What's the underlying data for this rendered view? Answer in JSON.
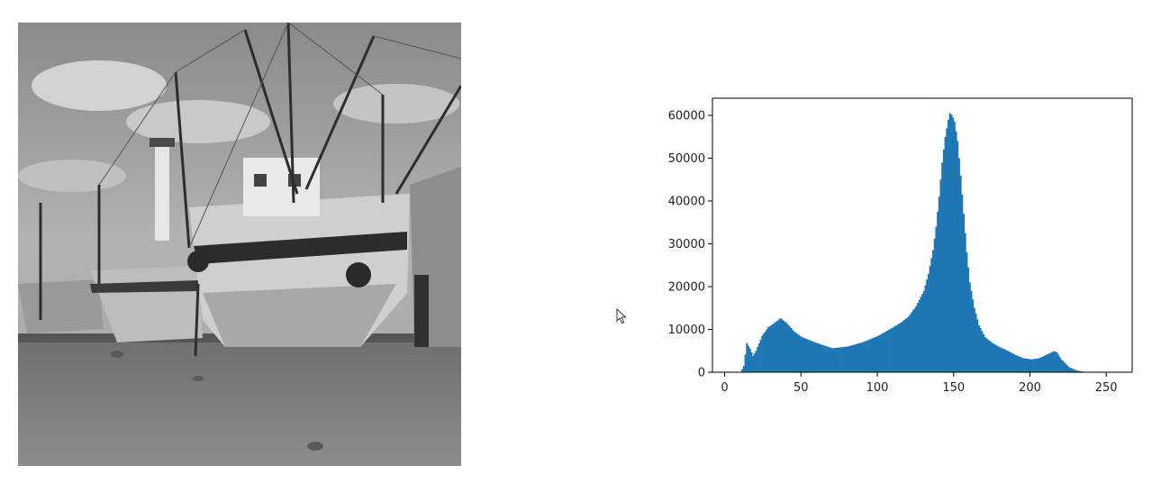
{
  "photo": {
    "icon": "grayscale-boats-photo-icon"
  },
  "cursor": {
    "icon": "mouse-pointer-icon"
  },
  "chart_data": {
    "type": "bar",
    "title": "",
    "xlabel": "",
    "ylabel": "",
    "xlim": [
      -8,
      267
    ],
    "ylim": [
      0,
      64000
    ],
    "grid": false,
    "legend": "none",
    "color": "#1f77b4",
    "xticks": [
      0,
      50,
      100,
      150,
      200,
      250
    ],
    "yticks": [
      0,
      10000,
      20000,
      30000,
      40000,
      50000,
      60000
    ],
    "x": [
      8,
      10,
      12,
      14,
      16,
      18,
      20,
      24,
      28,
      32,
      36,
      40,
      45,
      50,
      55,
      60,
      70,
      80,
      90,
      100,
      105,
      110,
      115,
      120,
      125,
      130,
      133,
      136,
      138,
      140,
      142,
      144,
      146,
      147,
      148,
      149,
      150,
      152,
      154,
      156,
      158,
      160,
      163,
      166,
      170,
      175,
      180,
      185,
      190,
      195,
      200,
      205,
      210,
      215,
      217,
      220,
      225,
      230,
      235,
      240,
      245,
      250
    ],
    "values": [
      0,
      0,
      1500,
      6800,
      5500,
      3800,
      5000,
      8500,
      10500,
      11500,
      12600,
      11500,
      9500,
      8200,
      7500,
      6800,
      5600,
      6000,
      7000,
      8500,
      9500,
      10500,
      11600,
      13000,
      15500,
      19000,
      23000,
      28500,
      34000,
      41000,
      49000,
      55000,
      59000,
      60500,
      60200,
      59500,
      58500,
      54000,
      46000,
      37000,
      28000,
      21000,
      15000,
      11000,
      8200,
      6800,
      5800,
      5000,
      4000,
      3300,
      3000,
      3200,
      4000,
      4900,
      4700,
      3000,
      1200,
      400,
      100,
      0,
      0,
      0
    ]
  }
}
